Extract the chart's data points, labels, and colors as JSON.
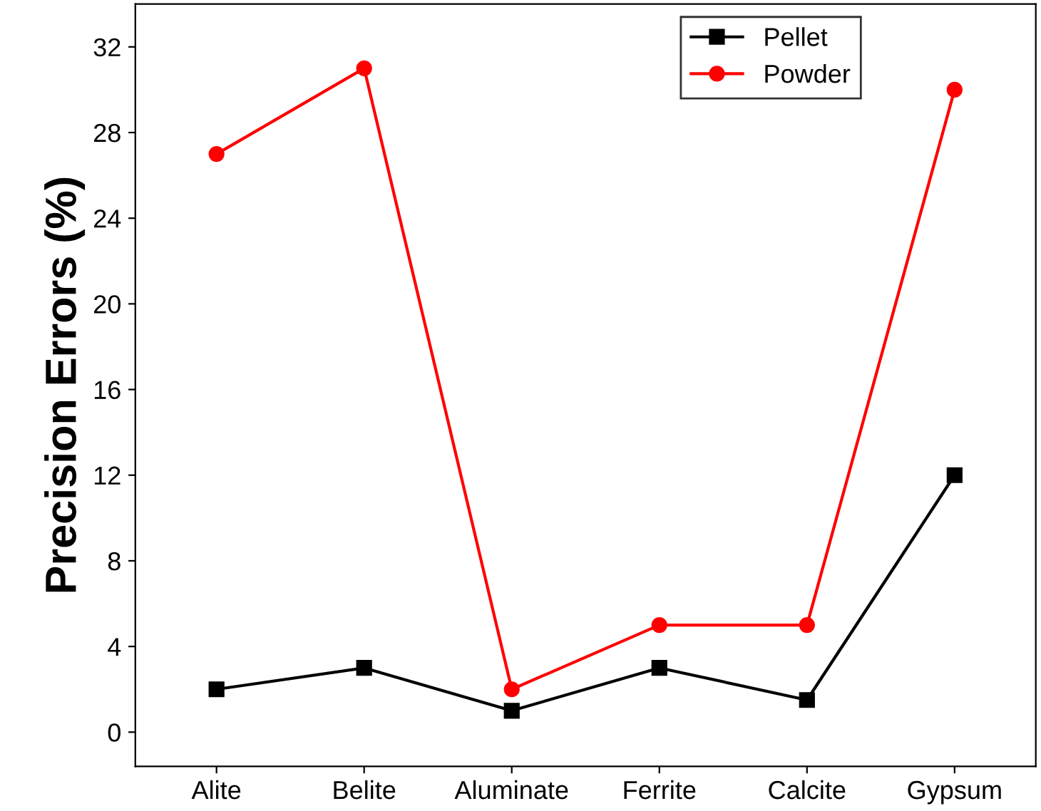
{
  "chart_data": {
    "type": "line",
    "ylabel": "Precision Errors (%)",
    "categories": [
      "Alite",
      "Belite",
      "Aluminate",
      "Ferrite",
      "Calcite",
      "Gypsum"
    ],
    "series": [
      {
        "name": "Pellet",
        "color": "#000000",
        "values": [
          2,
          3,
          1,
          3,
          1.5,
          12
        ],
        "marker": "square"
      },
      {
        "name": "Powder",
        "color": "#ff0000",
        "values": [
          27,
          31,
          2,
          5,
          5,
          30
        ],
        "marker": "circle"
      }
    ],
    "ylim": [
      -1.6,
      34
    ],
    "yticks": [
      0,
      4,
      8,
      12,
      16,
      20,
      24,
      28,
      32
    ],
    "legend": "top right",
    "grid": false,
    "line_style": "solid"
  }
}
